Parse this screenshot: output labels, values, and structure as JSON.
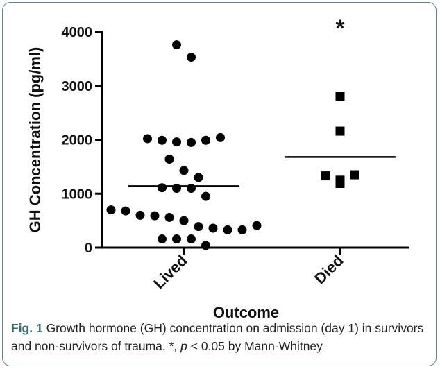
{
  "chart_data": {
    "type": "scatter",
    "ylabel": "GH Concentration (pg/ml)",
    "xlabel": "Outcome",
    "categories": [
      "Lived",
      "Died"
    ],
    "ylim": [
      0,
      4000
    ],
    "yticks": [
      0,
      1000,
      2000,
      3000,
      4000
    ],
    "grid": false,
    "series": [
      {
        "name": "Lived",
        "marker": "circle",
        "mean": 1140,
        "values": [
          3760,
          3530,
          2020,
          1990,
          1960,
          1950,
          1990,
          2040,
          1640,
          1430,
          1300,
          1110,
          1100,
          1100,
          950,
          700,
          680,
          600,
          590,
          560,
          500,
          390,
          360,
          330,
          330,
          410,
          160,
          160,
          160,
          40
        ]
      },
      {
        "name": "Died",
        "marker": "square",
        "mean": 1680,
        "values": [
          2810,
          2160,
          1330,
          1190,
          1250,
          1350
        ]
      }
    ],
    "annotations": [
      {
        "text": "*",
        "category": "Died"
      }
    ],
    "colors": {
      "marker": "#000000",
      "frame": "#5a8a8a",
      "caption_label": "#2e6e73"
    }
  },
  "caption": {
    "label": "Fig. 1",
    "text_1": " Growth hormone (GH) concentration on admission (day 1) in survivors and non-survivors of trauma. *, ",
    "p_symbol": "p",
    "text_2": " < 0.05 by Mann-Whitney"
  }
}
